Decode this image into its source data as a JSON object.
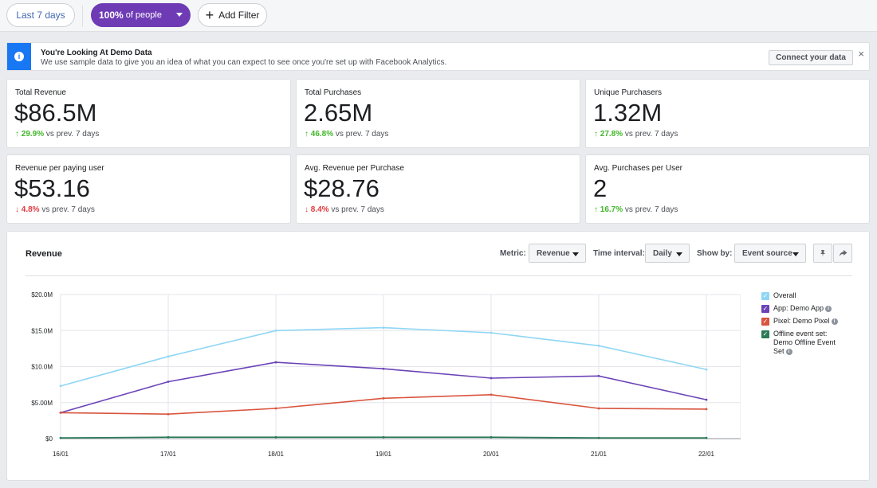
{
  "topbar": {
    "date_range": "Last 7 days",
    "people_pct": "100%",
    "people_suffix": "of people",
    "add_filter": "Add Filter"
  },
  "banner": {
    "title": "You're Looking At Demo Data",
    "description": "We use sample data to give you an idea of what you can expect to see once you're set up with Facebook Analytics.",
    "connect_label": "Connect your data",
    "close_icon": "×"
  },
  "cards": [
    {
      "label": "Total Revenue",
      "value": "$86.5M",
      "arrow": "↑",
      "change": "29.9%",
      "direction": "up",
      "suffix": "vs prev. 7 days"
    },
    {
      "label": "Total Purchases",
      "value": "2.65M",
      "arrow": "↑",
      "change": "46.8%",
      "direction": "up",
      "suffix": "vs prev. 7 days"
    },
    {
      "label": "Unique Purchasers",
      "value": "1.32M",
      "arrow": "↑",
      "change": "27.8%",
      "direction": "up",
      "suffix": "vs prev. 7 days"
    },
    {
      "label": "Revenue per paying user",
      "value": "$53.16",
      "arrow": "↓",
      "change": "4.8%",
      "direction": "down",
      "suffix": "vs prev. 7 days"
    },
    {
      "label": "Avg. Revenue per Purchase",
      "value": "$28.76",
      "arrow": "↓",
      "change": "8.4%",
      "direction": "down",
      "suffix": "vs prev. 7 days"
    },
    {
      "label": "Avg. Purchases per User",
      "value": "2",
      "arrow": "↑",
      "change": "16.7%",
      "direction": "up",
      "suffix": "vs prev. 7 days"
    }
  ],
  "chart_panel": {
    "title": "Revenue",
    "metric_label": "Metric:",
    "metric_value": "Revenue",
    "interval_label": "Time interval:",
    "interval_value": "Daily",
    "showby_label": "Show by:",
    "showby_value": "Event source",
    "pin_icon": "pin-icon",
    "share_icon": "share-icon"
  },
  "chart_data": {
    "type": "line",
    "title": "Revenue",
    "categories": [
      "16/01",
      "17/01",
      "18/01",
      "19/01",
      "20/01",
      "21/01",
      "22/01"
    ],
    "y_ticks": [
      "$0",
      "$5.00M",
      "$10.0M",
      "$15.0M",
      "$20.0M"
    ],
    "ylim": [
      0,
      20
    ],
    "y_unit": "M",
    "grid": true,
    "legend_position": "right",
    "series": [
      {
        "name": "Overall",
        "color": "#8fd6f5",
        "values": [
          7.3,
          11.4,
          15.0,
          15.4,
          14.7,
          12.9,
          9.6
        ]
      },
      {
        "name": "App: Demo App",
        "color": "#6b43b7",
        "values": [
          3.6,
          7.9,
          10.6,
          9.7,
          8.4,
          8.7,
          5.4
        ],
        "info": true
      },
      {
        "name": "Pixel: Demo Pixel",
        "color": "#d9553e",
        "values": [
          3.6,
          3.4,
          4.2,
          5.6,
          6.1,
          4.2,
          4.1
        ],
        "info": true
      },
      {
        "name": "Offline event set: Demo Offline Event Set",
        "color": "#2a7a57",
        "values": [
          0.1,
          0.2,
          0.2,
          0.2,
          0.2,
          0.1,
          0.1
        ],
        "info": true
      }
    ]
  }
}
